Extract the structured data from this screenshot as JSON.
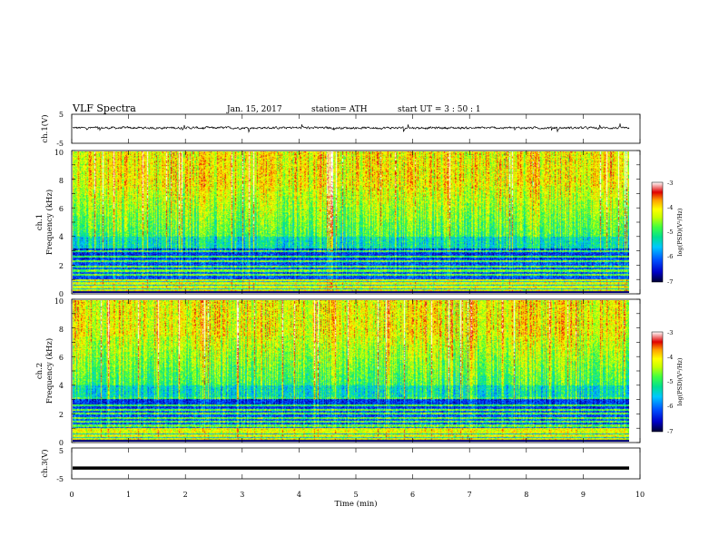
{
  "header": {
    "title": "VLF  Spectra",
    "date": "Jan. 15, 2017",
    "station": "station= ATH",
    "start": "start  UT  =   3  : 50 : 1"
  },
  "colors": {
    "spectrogram_scale": [
      "#000033",
      "#0000c8",
      "#0050ff",
      "#00c8ff",
      "#00e090",
      "#40ff40",
      "#c8ff00",
      "#ffff00",
      "#ffa000",
      "#e00000",
      "#ffffff"
    ],
    "trace": "#000000"
  },
  "chart_data": [
    {
      "id": "ch1-waveform",
      "type": "line",
      "ylabel": "ch.1(V)",
      "ylim": [
        -5,
        5
      ],
      "yticks": [
        "5",
        "-5"
      ],
      "description_level": "noisy trace near 0 V",
      "mean": 0,
      "x_range_min": [
        0,
        9.8
      ]
    },
    {
      "id": "ch1-spectrogram",
      "type": "heatmap",
      "ylabel_top": "ch.1",
      "ylabel": "Frequency  (kHz)",
      "ylim": [
        0,
        10
      ],
      "yticks": [
        "0",
        "2",
        "4",
        "6",
        "8",
        "10"
      ],
      "x_range_min": [
        0,
        9.8
      ],
      "colorbar": {
        "label": "log(PSD)(V²/Hz)",
        "range": [
          -7,
          -3
        ],
        "ticks": [
          "-3",
          "-4",
          "-5",
          "-6",
          "-7"
        ]
      }
    },
    {
      "id": "ch2-spectrogram",
      "type": "heatmap",
      "ylabel_top": "ch.2",
      "ylabel": "Frequency  (kHz)",
      "ylim": [
        0,
        10
      ],
      "yticks": [
        "0",
        "2",
        "4",
        "6",
        "8",
        "10"
      ],
      "x_range_min": [
        0,
        9.8
      ],
      "colorbar": {
        "label": "log(PSD)(V²/Hz)",
        "range": [
          -7,
          -3
        ],
        "ticks": [
          "-3",
          "-4",
          "-5",
          "-6",
          "-7"
        ]
      }
    },
    {
      "id": "ch3-waveform",
      "type": "line",
      "ylabel": "ch.3(V)",
      "ylim": [
        -5,
        5
      ],
      "yticks": [
        "5",
        "-5"
      ],
      "level": -1.5,
      "x_range_min": [
        0,
        9.8
      ]
    }
  ],
  "xaxis": {
    "label": "Time  (min)",
    "ticks": [
      "0",
      "1",
      "2",
      "3",
      "4",
      "5",
      "6",
      "7",
      "8",
      "9",
      "10"
    ],
    "range": [
      0,
      10
    ]
  }
}
